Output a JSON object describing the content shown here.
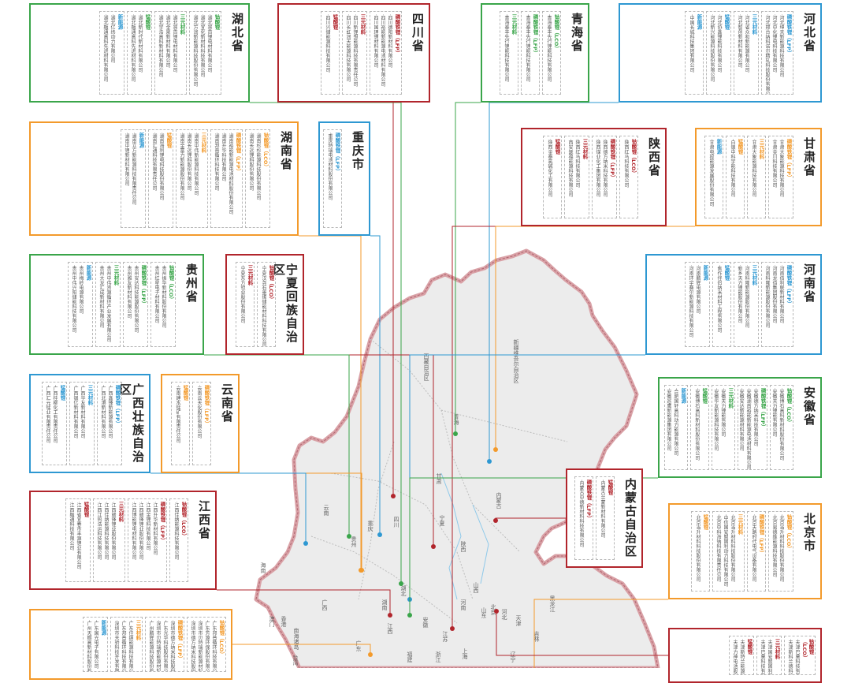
{
  "colors": {
    "red": "#b1252c",
    "blue": "#2e98d2",
    "orange": "#f39a2b",
    "green": "#3aa54a",
    "map_fill": "#ececec",
    "map_border": "#d9a1a6"
  },
  "boxes": [
    {
      "id": "hubei",
      "name": "湖北省",
      "color": "green",
      "columns": [
        {
          "title": "钴酸锂",
          "tc": "green",
          "items": [
            "湖北容百锂电材料有限公司",
            "湖北宜化新材料科技有限公司",
            "湖北万润新能源科技股份有限公司"
          ]
        },
        {
          "title": "三元材料",
          "tc": "green",
          "items": [
            "湖北容百锂电材料有限公司",
            "湖北金泉新材料有限公司",
            "湖北宇浩高科新材料有限公司"
          ]
        },
        {
          "title": "锰酸锂",
          "tc": "green",
          "items": [
            "湖北新时代新材料有限公司",
            "湖北融通高科先进材料有限公司"
          ]
        },
        {
          "title": "新能源",
          "tc": "blue",
          "items": [
            "湖北亿纬动力有限公司",
            "湖北融通高科先进材料有限公司"
          ]
        }
      ]
    },
    {
      "id": "sichuan",
      "name": "四川省",
      "color": "red",
      "columns": [
        {
          "title": "磷酸铁锂（LFP）",
          "tc": "red",
          "items": [
            "四川德阳新材料有限公司",
            "四川裕能新能源电池材料有限公司",
            "四川国理锂材料有限公司"
          ]
        },
        {
          "title": "三元材料",
          "tc": "red",
          "items": [
            "四川新锂想能源科技有限责任公司",
            "四川长虹润天能源科技有限公司"
          ]
        },
        {
          "title": "锰酸锂",
          "tc": "red",
          "items": [
            "四川兴储能源科技有限公司"
          ]
        }
      ]
    },
    {
      "id": "qinghai",
      "name": "青海省",
      "color": "green",
      "columns": [
        {
          "title": "钴酸锂（LCO）",
          "tc": "green",
          "items": [
            "青海泰丰先行锂能科技有限公司"
          ]
        },
        {
          "title": "磷酸铁锂（LFP）",
          "tc": "green",
          "items": [
            "青海泰丰先行锂能科技有限公司"
          ]
        },
        {
          "title": "三元材料",
          "tc": "green",
          "items": [
            "青海泰丰先行锂能科技有限公司"
          ]
        }
      ]
    },
    {
      "id": "hebei",
      "name": "河北省",
      "color": "blue",
      "columns": [
        {
          "title": "磷酸铁锂（LFP）",
          "tc": "blue",
          "items": [
            "河北坤天新能源科技有限公司",
            "河北中化锂电科技有限公司",
            "河北邢台纳科诺尔精轧科技股份有限公司"
          ]
        },
        {
          "title": "三元材料",
          "tc": "blue",
          "items": [
            "河北省众和新能源有限公司",
            "河北智创新材料有限公司"
          ]
        },
        {
          "title": "锰酸锂",
          "tc": "blue",
          "items": [
            "河北协鑫锂能科技有限公司",
            "河北新兴能源科技股份有限公司"
          ]
        },
        {
          "title": "新能源",
          "tc": "blue",
          "items": [
            "中国长城科技集团有限公司"
          ]
        }
      ]
    },
    {
      "id": "hunan",
      "name": "湖南省",
      "color": "orange",
      "columns": [
        {
          "title": "钴酸锂（LCO）",
          "tc": "orange",
          "items": [
            "湖南杉杉能源科技股份有限公司",
            "湖南长远锂科股份有限公司"
          ]
        },
        {
          "title": "磷酸铁锂（LFP）",
          "tc": "orange",
          "items": [
            "湖南裕能新能源电池材料股份有限公司",
            "湖南升华科技有限公司",
            "湖南邦普循环科技有限公司"
          ]
        },
        {
          "title": "三元材料",
          "tc": "orange",
          "items": [
            "湖南中伟新能源科技有限公司",
            "湖南长远锂科股份有限公司",
            "湖南金富力新能源股份有限公司"
          ]
        },
        {
          "title": "锰酸锂",
          "tc": "orange",
          "items": [
            "湖南海利锂电科技股份有限公司",
            "湖南汇通科技有限责任公司"
          ]
        },
        {
          "title": "新能源",
          "tc": "blue",
          "items": [
            "湖南立方新能源科技有限责任公司",
            "湖南中锂新材料有限公司"
          ]
        }
      ]
    },
    {
      "id": "chongqing",
      "name": "重庆市",
      "color": "blue",
      "columns": [
        {
          "title": "磷酸铁锂（LFP）",
          "tc": "blue",
          "items": [
            "重庆特瑞电池材料股份有限公司"
          ]
        }
      ]
    },
    {
      "id": "shaanxi",
      "name": "陕西省",
      "color": "red",
      "columns": [
        {
          "title": "钴酸锂（LCO）",
          "tc": "red",
          "items": [
            "陕西红马科技有限公司"
          ]
        },
        {
          "title": "磷酸铁锂（LFP）",
          "tc": "red",
          "items": [
            "陕西德方纳米科技有限公司",
            "陕西煤业化工集团有限公司"
          ]
        },
        {
          "title": "三元材料",
          "tc": "red",
          "items": [
            "陕西红马科技有限公司",
            "西安瑟福能源科技有限公司"
          ]
        },
        {
          "title": "锰酸锂",
          "tc": "red",
          "items": [
            "陕西金泰氯碱化工有限公司"
          ]
        }
      ]
    },
    {
      "id": "gansu",
      "name": "甘肃省",
      "color": "orange",
      "columns": [
        {
          "title": "磷酸铁锂（LFP）",
          "tc": "orange",
          "items": [
            "甘肃大象能源科技有限公司",
            "甘肃金川科技有限公司"
          ]
        },
        {
          "title": "三元材料",
          "tc": "orange",
          "items": [
            "甘肃大象能源科技有限公司"
          ]
        },
        {
          "title": "锰酸锂",
          "tc": "orange",
          "items": [
            "白银中科宇能科技有限公司"
          ]
        },
        {
          "title": "新能源",
          "tc": "blue",
          "items": [
            "甘肃电投能源发展股份有限公司"
          ]
        }
      ]
    },
    {
      "id": "ningxia",
      "name": "宁夏回族自治区",
      "color": "red",
      "columns": [
        {
          "title": "钴酸锂（LCO）",
          "tc": "red",
          "items": [
            "宁夏汉尧石墨烯储能材料科技有限公司"
          ]
        },
        {
          "title": "三元材料",
          "tc": "red",
          "items": [
            "宁夏东方钽业股份有限公司"
          ]
        }
      ]
    },
    {
      "id": "guizhou",
      "name": "贵州省",
      "color": "green",
      "columns": [
        {
          "title": "钴酸锂（LCO）",
          "tc": "green",
          "items": [
            "贵州振华新材料股份有限公司",
            "贵州红星电子材料有限公司"
          ]
        },
        {
          "title": "磷酸铁锂（LFP）",
          "tc": "green",
          "items": [
            "贵州安达科技能源股份有限公司",
            "贵州雅友新材料有限公司"
          ]
        },
        {
          "title": "三元材料",
          "tc": "green",
          "items": [
            "贵州中伟资源循环产业发展有限公司",
            "贵州大龙汇成新材料有限公司"
          ]
        },
        {
          "title": "新能源",
          "tc": "blue",
          "items": [
            "贵州梅岭电源有限公司",
            "贵州中伟兴阳储能科技有限公司"
          ]
        }
      ]
    },
    {
      "id": "henan",
      "name": "河南省",
      "color": "blue",
      "columns": [
        {
          "title": "磷酸铁锂（LFP）",
          "tc": "blue",
          "items": [
            "河南佰利联新材料有限公司",
            "河南龙佰集团股份有限公司",
            "河南科隆新能源股份有限公司"
          ]
        },
        {
          "title": "三元材料",
          "tc": "blue",
          "items": [
            "河南科隆新能源股份有限公司",
            "新乡天力锂能股份有限公司"
          ]
        },
        {
          "title": "锰酸锂",
          "tc": "blue",
          "items": [
            "焦作伴侣纳米材料工程有限公司"
          ]
        },
        {
          "title": "新能源",
          "tc": "blue",
          "items": [
            "河南鹏辉电源有限公司",
            "河南环宇赛尔新能源科技有限公司"
          ]
        }
      ]
    },
    {
      "id": "yunnan",
      "name": "云南省",
      "color": "orange",
      "columns": [
        {
          "title": "磷酸铁锂（LFP）",
          "tc": "orange",
          "items": [
            "云南云天化股份有限公司"
          ]
        },
        {
          "title": "锰酸锂",
          "tc": "orange",
          "items": [
            "云南建水锰矿有限责任公司"
          ]
        }
      ]
    },
    {
      "id": "guangxi",
      "name": "广西壮族自治区",
      "color": "blue",
      "columns": [
        {
          "title": "磷酸铁锂（LFP）",
          "tc": "blue",
          "items": [
            "广西鑫锋新能源有限公司",
            "广西北港新材料有限公司"
          ]
        },
        {
          "title": "三元材料",
          "tc": "blue",
          "items": [
            "广西华友新材料有限公司",
            "广西银亿新材料有限公司"
          ]
        },
        {
          "title": "锰酸锂",
          "tc": "blue",
          "items": [
            "广西桂柳化工有限责任公司",
            "广西汇元锰业有限责任公司"
          ]
        }
      ]
    },
    {
      "id": "anhui",
      "name": "安徽省",
      "color": "green",
      "columns": [
        {
          "title": "钴酸锂（LCO）",
          "tc": "green",
          "items": [
            "安徽博石高科新材料股份有限公司",
            "安徽天力锂能有限公司"
          ]
        },
        {
          "title": "磷酸铁锂（LFP）",
          "tc": "green",
          "items": [
            "安徽德方纳米科技有限公司",
            "安徽湖南裕能新能源电池材料有限公司",
            "安徽安达新能源材料有限公司"
          ]
        },
        {
          "title": "三元材料",
          "tc": "green",
          "items": [
            "安徽天力锂能有限公司",
            "安徽华友新能源科技有限公司"
          ]
        },
        {
          "title": "锰酸锂",
          "tc": "green",
          "items": [
            "安徽博石高科新材料股份有限公司"
          ]
        },
        {
          "title": "新能源",
          "tc": "blue",
          "items": [
            "合肥国轩高科动力能源有限公司",
            "安徽巡鹰新能源集团有限公司"
          ]
        }
      ]
    },
    {
      "id": "neimenggu",
      "name": "内蒙古自治区",
      "color": "red",
      "columns": [
        {
          "title": "锰酸锂",
          "tc": "red",
          "items": [
            "内蒙古兰蒙新材料有限公司"
          ]
        },
        {
          "title": "磷酸铁锂（LFP）",
          "tc": "red",
          "items": [
            "内蒙古中德新材料科技有限公司"
          ]
        }
      ]
    },
    {
      "id": "jiangxi",
      "name": "江西省",
      "color": "red",
      "columns": [
        {
          "title": "钴酸锂（LCO）",
          "tc": "red",
          "items": [
            "江西佳纳能源科技有限公司"
          ]
        },
        {
          "title": "磷酸铁锂（LFP）",
          "tc": "red",
          "items": [
            "江西升华新材料有限公司",
            "江西金锂科技有限公司",
            "江西赣锋锂业股份有限公司",
            "江西博能锂电材料有限公司"
          ]
        },
        {
          "title": "三元材料",
          "tc": "red",
          "items": [
            "江西赣锋锂业股份有限公司",
            "江西佳纳能源科技有限公司",
            "江西江钨浩运科技有限公司"
          ]
        },
        {
          "title": "锰酸锂",
          "tc": "red",
          "items": [
            "江西省宜春市丰源锂业有限公司",
            "江西融通科技有限公司"
          ]
        }
      ]
    },
    {
      "id": "beijing",
      "name": "北京市",
      "color": "orange",
      "columns": [
        {
          "title": "钴酸锂（LCO）",
          "tc": "orange",
          "items": [
            "北京当升材料科技股份有限公司",
            "北京易德维能源科技有限公司"
          ]
        },
        {
          "title": "磷酸铁锂（LFP）",
          "tc": "orange",
          "items": [
            "北京天路时代电气设备有限公司"
          ]
        },
        {
          "title": "三元材料",
          "tc": "orange",
          "items": [
            "北京当升材料科技股份有限公司",
            "中信国安盟固利动力科技有限公司",
            "北京中科海钠科技有限责任公司"
          ]
        },
        {
          "title": "锰酸锂",
          "tc": "orange",
          "items": [
            "北京当升材料科技股份有限公司"
          ]
        }
      ]
    },
    {
      "id": "guangdong",
      "name": "",
      "color": "orange",
      "columns": [
        {
          "title": "钴酸锂（LCO）",
          "tc": "orange",
          "items": [
            "广东邦普循环科技有限公司",
            "广东芳源环保股份有限公司",
            "深圳市贝特瑞新能源材料股份有限公司",
            "深圳市德方纳米科技股份有限公司"
          ]
        },
        {
          "title": "磷酸铁锂（LFP）",
          "tc": "orange",
          "items": [
            "深圳市德方纳米科技股份有限公司",
            "广东光华科技股份有限公司",
            "深圳市贝特瑞新能源材料股份有限公司",
            "广州鹏辉能源科技股份有限公司"
          ]
        },
        {
          "title": "三元材料",
          "tc": "orange",
          "items": [
            "广东佳纳能源科技有限公司",
            "广东邦普循环科技有限公司",
            "深圳市天骄科技开发有限公司"
          ]
        },
        {
          "title": "新能源",
          "tc": "blue",
          "items": [
            "广东国光电子有限公司",
            "广州天赐高新材料股份有限公司"
          ]
        }
      ]
    },
    {
      "id": "tianjin",
      "name": "",
      "color": "red",
      "columns": [
        {
          "title": "钴酸锂（LCO）",
          "tc": "red",
          "items": [
            "天津巴莫科技有限责任公司",
            "天津斯科兰德科技有限公司"
          ]
        },
        {
          "title": "三元材料",
          "tc": "red",
          "items": [
            "天津国安盟固利新材料科技股份有限公司",
            "天津巴莫科技有限责任公司"
          ]
        },
        {
          "title": "锰酸锂",
          "tc": "red",
          "items": [
            "天津斯特兰能源科技有限公司",
            "天津力神电池股份有限公司"
          ]
        }
      ]
    }
  ],
  "map": {
    "labels": [
      "新疆维吾尔自治区",
      "西藏自治区",
      "内蒙古",
      "四川",
      "青海",
      "甘肃",
      "宁夏",
      "陕西",
      "山西",
      "河北",
      "北京",
      "天津",
      "辽宁",
      "吉林",
      "黑龙江",
      "山东",
      "河南",
      "湖北",
      "湖南",
      "江西",
      "安徽",
      "江苏",
      "浙江",
      "福建",
      "广东",
      "广西",
      "云南",
      "贵州",
      "重庆",
      "海南",
      "台湾",
      "上海",
      "澳门",
      "香港",
      "南海诸岛"
    ],
    "dots": [
      {
        "province": "qinghai",
        "color": "green"
      },
      {
        "province": "sichuan",
        "color": "red"
      },
      {
        "province": "hubei",
        "color": "green"
      },
      {
        "province": "hebei",
        "color": "blue"
      },
      {
        "province": "hunan",
        "color": "orange"
      },
      {
        "province": "chongqing",
        "color": "blue"
      },
      {
        "province": "shaanxi",
        "color": "red"
      },
      {
        "province": "gansu",
        "color": "orange"
      },
      {
        "province": "ningxia",
        "color": "red"
      },
      {
        "province": "guizhou",
        "color": "green"
      },
      {
        "province": "henan",
        "color": "blue"
      },
      {
        "province": "yunnan",
        "color": "orange"
      },
      {
        "province": "guangxi",
        "color": "blue"
      },
      {
        "province": "anhui",
        "color": "green"
      },
      {
        "province": "neimenggu",
        "color": "red"
      },
      {
        "province": "jiangxi",
        "color": "red"
      },
      {
        "province": "beijing",
        "color": "orange"
      },
      {
        "province": "guangdong",
        "color": "orange"
      },
      {
        "province": "tianjin",
        "color": "red"
      }
    ]
  }
}
